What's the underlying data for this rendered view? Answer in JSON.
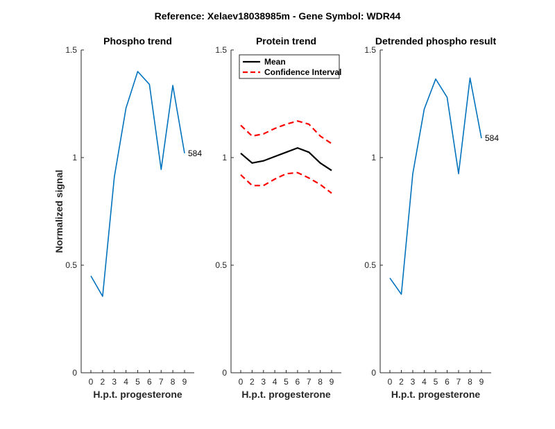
{
  "figure": {
    "title": "Reference:  Xelaev18038985m - Gene Symbol:  WDR44"
  },
  "chart_data": [
    {
      "type": "line",
      "title": "Phospho trend",
      "xlabel": "H.p.t. progesterone",
      "ylabel": "Normalized signal",
      "xticks": [
        0,
        2,
        3,
        4,
        5,
        6,
        7,
        8,
        9
      ],
      "ylim": [
        0,
        1.5
      ],
      "yticks": [
        "0",
        "0.5",
        "1",
        "1.5"
      ],
      "series": [
        {
          "color": "#0072BD",
          "dash": "solid",
          "width": 1.6,
          "values": [
            0.45,
            0.355,
            0.91,
            1.23,
            1.4,
            1.34,
            0.945,
            1.335,
            1.02
          ]
        }
      ],
      "annotation": {
        "text": "584",
        "at_index": 8
      }
    },
    {
      "type": "line",
      "title": "Protein trend",
      "xlabel": "H.p.t. progesterone",
      "ylabel": "",
      "xticks": [
        0,
        2,
        3,
        4,
        5,
        6,
        7,
        8,
        9
      ],
      "ylim": [
        0,
        1.5
      ],
      "yticks": [
        "0",
        "0.5",
        "1",
        "1.5"
      ],
      "series": [
        {
          "name": "Mean",
          "color": "#000000",
          "dash": "solid",
          "width": 2.2,
          "values": [
            1.02,
            0.975,
            0.985,
            1.005,
            1.025,
            1.045,
            1.025,
            0.975,
            0.94
          ]
        },
        {
          "name": "Confidence Interval",
          "color": "#FF0000",
          "dash": "dashed",
          "width": 2.2,
          "values": [
            1.15,
            1.1,
            1.11,
            1.135,
            1.155,
            1.17,
            1.155,
            1.1,
            1.065
          ]
        },
        {
          "color": "#FF0000",
          "dash": "dashed",
          "width": 2.2,
          "values": [
            0.92,
            0.87,
            0.87,
            0.9,
            0.925,
            0.93,
            0.905,
            0.875,
            0.835
          ]
        }
      ],
      "legend": {
        "placement": "top-left",
        "entries": [
          {
            "label": "Mean",
            "color": "#000000",
            "dash": "solid"
          },
          {
            "label": "Confidence Interval",
            "color": "#FF0000",
            "dash": "dashed"
          }
        ]
      }
    },
    {
      "type": "line",
      "title": "Detrended phospho result",
      "xlabel": "H.p.t. progesterone",
      "ylabel": "",
      "xticks": [
        0,
        2,
        3,
        4,
        5,
        6,
        7,
        8,
        9
      ],
      "ylim": [
        0,
        1.5
      ],
      "yticks": [
        "0",
        "0.5",
        "1",
        "1.5"
      ],
      "series": [
        {
          "color": "#0072BD",
          "dash": "solid",
          "width": 1.6,
          "values": [
            0.44,
            0.365,
            0.925,
            1.225,
            1.365,
            1.28,
            0.925,
            1.37,
            1.09
          ]
        }
      ],
      "annotation": {
        "text": "584",
        "at_index": 8
      }
    }
  ]
}
